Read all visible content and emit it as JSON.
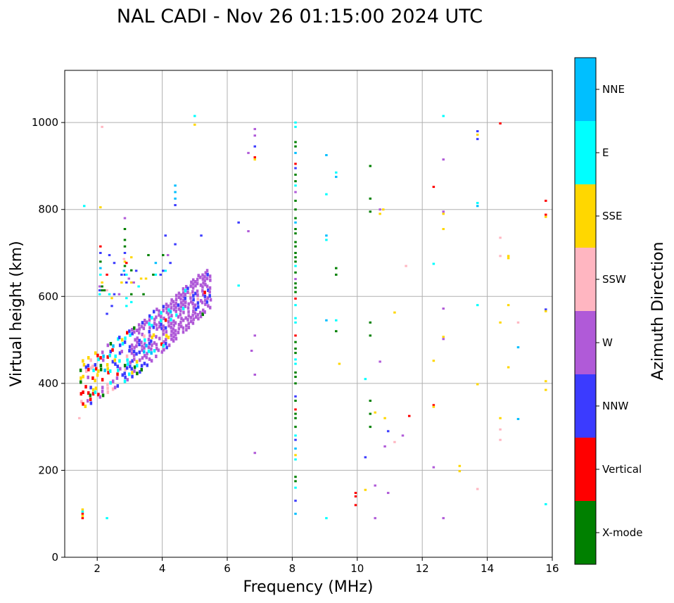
{
  "chart_data": {
    "type": "scatter",
    "title": "NAL CADI - Nov 26 01:15:00 2024 UTC",
    "xlabel": "Frequency (MHz)",
    "ylabel": "Virtual height (km)",
    "xlim": [
      1,
      16
    ],
    "ylim": [
      0,
      1120
    ],
    "xticks": [
      2,
      4,
      6,
      8,
      10,
      12,
      14,
      16
    ],
    "yticks": [
      0,
      200,
      400,
      600,
      800,
      1000
    ],
    "grid": true,
    "colorbar": {
      "label": "Azimuth Direction",
      "categories": [
        {
          "name": "X-mode",
          "color": "#008000"
        },
        {
          "name": "Vertical",
          "color": "#ff0000"
        },
        {
          "name": "NNW",
          "color": "#3b3bff"
        },
        {
          "name": "W",
          "color": "#b05ad8"
        },
        {
          "name": "SSW",
          "color": "#ffb6c1"
        },
        {
          "name": "SSE",
          "color": "#ffd700"
        },
        {
          "name": "E",
          "color": "#00ffff"
        },
        {
          "name": "NNE",
          "color": "#00bfff"
        }
      ]
    },
    "points": [
      {
        "f": 8.1,
        "h": 1000,
        "c": 6
      },
      {
        "f": 8.1,
        "h": 990,
        "c": 6
      },
      {
        "f": 8.1,
        "h": 955,
        "c": 0
      },
      {
        "f": 8.1,
        "h": 945,
        "c": 0
      },
      {
        "f": 8.1,
        "h": 930,
        "c": 7
      },
      {
        "f": 8.1,
        "h": 905,
        "c": 1
      },
      {
        "f": 8.1,
        "h": 895,
        "c": 2
      },
      {
        "f": 8.1,
        "h": 880,
        "c": 0
      },
      {
        "f": 8.1,
        "h": 865,
        "c": 0
      },
      {
        "f": 8.1,
        "h": 855,
        "c": 6
      },
      {
        "f": 8.1,
        "h": 840,
        "c": 3
      },
      {
        "f": 8.1,
        "h": 820,
        "c": 0
      },
      {
        "f": 8.1,
        "h": 800,
        "c": 0
      },
      {
        "f": 8.1,
        "h": 780,
        "c": 0
      },
      {
        "f": 8.1,
        "h": 770,
        "c": 7
      },
      {
        "f": 8.1,
        "h": 755,
        "c": 0
      },
      {
        "f": 8.1,
        "h": 745,
        "c": 0
      },
      {
        "f": 8.1,
        "h": 725,
        "c": 0
      },
      {
        "f": 8.1,
        "h": 715,
        "c": 0
      },
      {
        "f": 8.1,
        "h": 700,
        "c": 0
      },
      {
        "f": 8.1,
        "h": 690,
        "c": 0
      },
      {
        "f": 8.1,
        "h": 680,
        "c": 0
      },
      {
        "f": 8.1,
        "h": 670,
        "c": 6
      },
      {
        "f": 8.1,
        "h": 655,
        "c": 0
      },
      {
        "f": 8.1,
        "h": 640,
        "c": 3
      },
      {
        "f": 8.1,
        "h": 630,
        "c": 0
      },
      {
        "f": 8.1,
        "h": 620,
        "c": 0
      },
      {
        "f": 8.1,
        "h": 610,
        "c": 0
      },
      {
        "f": 8.1,
        "h": 595,
        "c": 1
      },
      {
        "f": 8.1,
        "h": 580,
        "c": 6
      },
      {
        "f": 8.1,
        "h": 550,
        "c": 6
      },
      {
        "f": 8.1,
        "h": 540,
        "c": 6
      },
      {
        "f": 8.1,
        "h": 510,
        "c": 1
      },
      {
        "f": 8.1,
        "h": 495,
        "c": 0
      },
      {
        "f": 8.1,
        "h": 480,
        "c": 0
      },
      {
        "f": 8.1,
        "h": 470,
        "c": 0
      },
      {
        "f": 8.1,
        "h": 455,
        "c": 6
      },
      {
        "f": 8.1,
        "h": 445,
        "c": 6
      },
      {
        "f": 8.1,
        "h": 425,
        "c": 0
      },
      {
        "f": 8.1,
        "h": 415,
        "c": 0
      },
      {
        "f": 8.1,
        "h": 400,
        "c": 0
      },
      {
        "f": 8.1,
        "h": 370,
        "c": 2
      },
      {
        "f": 8.1,
        "h": 360,
        "c": 0
      },
      {
        "f": 8.1,
        "h": 340,
        "c": 1
      },
      {
        "f": 8.1,
        "h": 330,
        "c": 0
      },
      {
        "f": 8.1,
        "h": 320,
        "c": 0
      },
      {
        "f": 8.1,
        "h": 300,
        "c": 0
      },
      {
        "f": 8.1,
        "h": 280,
        "c": 6
      },
      {
        "f": 8.1,
        "h": 270,
        "c": 2
      },
      {
        "f": 8.1,
        "h": 250,
        "c": 7
      },
      {
        "f": 8.1,
        "h": 235,
        "c": 5
      },
      {
        "f": 8.1,
        "h": 225,
        "c": 6
      },
      {
        "f": 8.1,
        "h": 185,
        "c": 0
      },
      {
        "f": 8.1,
        "h": 175,
        "c": 0
      },
      {
        "f": 8.1,
        "h": 160,
        "c": 6
      },
      {
        "f": 8.1,
        "h": 130,
        "c": 2
      },
      {
        "f": 8.1,
        "h": 100,
        "c": 7
      },
      {
        "f": 6.85,
        "h": 985,
        "c": 3
      },
      {
        "f": 6.85,
        "h": 970,
        "c": 3
      },
      {
        "f": 6.85,
        "h": 945,
        "c": 2
      },
      {
        "f": 6.85,
        "h": 920,
        "c": 1
      },
      {
        "f": 6.85,
        "h": 915,
        "c": 5
      },
      {
        "f": 6.85,
        "h": 510,
        "c": 3
      },
      {
        "f": 6.85,
        "h": 420,
        "c": 3
      },
      {
        "f": 6.85,
        "h": 240,
        "c": 3
      },
      {
        "f": 6.65,
        "h": 930,
        "c": 3
      },
      {
        "f": 6.65,
        "h": 750,
        "c": 3
      },
      {
        "f": 6.75,
        "h": 475,
        "c": 3
      },
      {
        "f": 6.35,
        "h": 770,
        "c": 2
      },
      {
        "f": 6.35,
        "h": 625,
        "c": 6
      },
      {
        "f": 5.0,
        "h": 1015,
        "c": 6
      },
      {
        "f": 5.0,
        "h": 995,
        "c": 5
      },
      {
        "f": 4.4,
        "h": 855,
        "c": 7
      },
      {
        "f": 4.4,
        "h": 840,
        "c": 7
      },
      {
        "f": 4.4,
        "h": 825,
        "c": 7
      },
      {
        "f": 4.4,
        "h": 810,
        "c": 2
      },
      {
        "f": 4.1,
        "h": 740,
        "c": 2
      },
      {
        "f": 4.4,
        "h": 720,
        "c": 2
      },
      {
        "f": 5.2,
        "h": 740,
        "c": 2
      },
      {
        "f": 9.05,
        "h": 925,
        "c": 7
      },
      {
        "f": 9.05,
        "h": 835,
        "c": 6
      },
      {
        "f": 9.05,
        "h": 740,
        "c": 7
      },
      {
        "f": 9.05,
        "h": 730,
        "c": 6
      },
      {
        "f": 9.05,
        "h": 545,
        "c": 7
      },
      {
        "f": 9.05,
        "h": 90,
        "c": 6
      },
      {
        "f": 9.35,
        "h": 885,
        "c": 6
      },
      {
        "f": 9.35,
        "h": 875,
        "c": 7
      },
      {
        "f": 9.35,
        "h": 665,
        "c": 0
      },
      {
        "f": 9.35,
        "h": 650,
        "c": 0
      },
      {
        "f": 9.35,
        "h": 545,
        "c": 6
      },
      {
        "f": 9.35,
        "h": 520,
        "c": 0
      },
      {
        "f": 9.45,
        "h": 445,
        "c": 5
      },
      {
        "f": 10.4,
        "h": 900,
        "c": 0
      },
      {
        "f": 10.4,
        "h": 825,
        "c": 0
      },
      {
        "f": 10.4,
        "h": 795,
        "c": 0
      },
      {
        "f": 10.7,
        "h": 800,
        "c": 3
      },
      {
        "f": 10.8,
        "h": 800,
        "c": 5
      },
      {
        "f": 10.7,
        "h": 790,
        "c": 5
      },
      {
        "f": 10.4,
        "h": 540,
        "c": 0
      },
      {
        "f": 10.4,
        "h": 510,
        "c": 0
      },
      {
        "f": 10.7,
        "h": 450,
        "c": 3
      },
      {
        "f": 10.25,
        "h": 410,
        "c": 6
      },
      {
        "f": 10.4,
        "h": 360,
        "c": 0
      },
      {
        "f": 10.4,
        "h": 330,
        "c": 0
      },
      {
        "f": 10.55,
        "h": 333,
        "c": 5
      },
      {
        "f": 10.85,
        "h": 320,
        "c": 5
      },
      {
        "f": 10.4,
        "h": 300,
        "c": 0
      },
      {
        "f": 10.95,
        "h": 290,
        "c": 2
      },
      {
        "f": 11.6,
        "h": 325,
        "c": 1
      },
      {
        "f": 11.4,
        "h": 280,
        "c": 3
      },
      {
        "f": 11.15,
        "h": 265,
        "c": 4
      },
      {
        "f": 10.85,
        "h": 255,
        "c": 3
      },
      {
        "f": 10.25,
        "h": 230,
        "c": 2
      },
      {
        "f": 10.55,
        "h": 165,
        "c": 3
      },
      {
        "f": 10.25,
        "h": 155,
        "c": 5
      },
      {
        "f": 9.95,
        "h": 148,
        "c": 1
      },
      {
        "f": 9.95,
        "h": 140,
        "c": 1
      },
      {
        "f": 9.95,
        "h": 120,
        "c": 1
      },
      {
        "f": 10.95,
        "h": 148,
        "c": 3
      },
      {
        "f": 10.55,
        "h": 90,
        "c": 3
      },
      {
        "f": 11.15,
        "h": 563,
        "c": 5
      },
      {
        "f": 11.5,
        "h": 670,
        "c": 4
      },
      {
        "f": 12.65,
        "h": 1015,
        "c": 6
      },
      {
        "f": 12.65,
        "h": 915,
        "c": 3
      },
      {
        "f": 12.35,
        "h": 852,
        "c": 1
      },
      {
        "f": 12.65,
        "h": 795,
        "c": 3
      },
      {
        "f": 12.65,
        "h": 790,
        "c": 5
      },
      {
        "f": 12.65,
        "h": 755,
        "c": 5
      },
      {
        "f": 12.35,
        "h": 675,
        "c": 6
      },
      {
        "f": 12.65,
        "h": 572,
        "c": 3
      },
      {
        "f": 12.65,
        "h": 507,
        "c": 5
      },
      {
        "f": 12.65,
        "h": 502,
        "c": 3
      },
      {
        "f": 12.35,
        "h": 452,
        "c": 5
      },
      {
        "f": 12.35,
        "h": 350,
        "c": 1
      },
      {
        "f": 12.35,
        "h": 346,
        "c": 5
      },
      {
        "f": 12.35,
        "h": 207,
        "c": 3
      },
      {
        "f": 12.65,
        "h": 90,
        "c": 3
      },
      {
        "f": 13.15,
        "h": 210,
        "c": 5
      },
      {
        "f": 13.15,
        "h": 198,
        "c": 5
      },
      {
        "f": 13.7,
        "h": 980,
        "c": 2
      },
      {
        "f": 13.7,
        "h": 972,
        "c": 5
      },
      {
        "f": 13.7,
        "h": 962,
        "c": 2
      },
      {
        "f": 13.7,
        "h": 815,
        "c": 6
      },
      {
        "f": 13.7,
        "h": 808,
        "c": 7
      },
      {
        "f": 13.7,
        "h": 580,
        "c": 6
      },
      {
        "f": 13.7,
        "h": 398,
        "c": 5
      },
      {
        "f": 13.7,
        "h": 157,
        "c": 4
      },
      {
        "f": 14.4,
        "h": 998,
        "c": 1
      },
      {
        "f": 14.4,
        "h": 735,
        "c": 4
      },
      {
        "f": 14.4,
        "h": 693,
        "c": 4
      },
      {
        "f": 14.65,
        "h": 693,
        "c": 5
      },
      {
        "f": 14.65,
        "h": 688,
        "c": 5
      },
      {
        "f": 14.65,
        "h": 580,
        "c": 5
      },
      {
        "f": 14.4,
        "h": 540,
        "c": 5
      },
      {
        "f": 14.95,
        "h": 540,
        "c": 4
      },
      {
        "f": 14.95,
        "h": 483,
        "c": 7
      },
      {
        "f": 14.65,
        "h": 437,
        "c": 5
      },
      {
        "f": 14.4,
        "h": 320,
        "c": 5
      },
      {
        "f": 14.95,
        "h": 318,
        "c": 7
      },
      {
        "f": 14.4,
        "h": 294,
        "c": 4
      },
      {
        "f": 14.4,
        "h": 270,
        "c": 4
      },
      {
        "f": 15.8,
        "h": 820,
        "c": 1
      },
      {
        "f": 15.8,
        "h": 788,
        "c": 1
      },
      {
        "f": 15.8,
        "h": 783,
        "c": 5
      },
      {
        "f": 15.8,
        "h": 570,
        "c": 2
      },
      {
        "f": 15.8,
        "h": 566,
        "c": 5
      },
      {
        "f": 15.8,
        "h": 405,
        "c": 5
      },
      {
        "f": 15.8,
        "h": 385,
        "c": 5
      },
      {
        "f": 15.8,
        "h": 122,
        "c": 6
      },
      {
        "f": 1.6,
        "h": 808,
        "c": 6
      },
      {
        "f": 2.1,
        "h": 805,
        "c": 5
      },
      {
        "f": 2.15,
        "h": 990,
        "c": 4
      },
      {
        "f": 2.3,
        "h": 90,
        "c": 6
      },
      {
        "f": 1.45,
        "h": 320,
        "c": 4
      },
      {
        "f": 1.55,
        "h": 110,
        "c": 5
      },
      {
        "f": 1.55,
        "h": 105,
        "c": 6
      },
      {
        "f": 1.55,
        "h": 100,
        "c": 1
      },
      {
        "f": 1.55,
        "h": 95,
        "c": 5
      },
      {
        "f": 1.55,
        "h": 90,
        "c": 1
      },
      {
        "f": 2.85,
        "h": 780,
        "c": 3
      },
      {
        "f": 2.85,
        "h": 755,
        "c": 0
      },
      {
        "f": 2.85,
        "h": 730,
        "c": 0
      },
      {
        "f": 2.85,
        "h": 715,
        "c": 0
      },
      {
        "f": 2.85,
        "h": 700,
        "c": 2
      },
      {
        "f": 2.85,
        "h": 680,
        "c": 5
      },
      {
        "f": 2.85,
        "h": 670,
        "c": 0
      },
      {
        "f": 2.85,
        "h": 650,
        "c": 2
      },
      {
        "f": 3.05,
        "h": 690,
        "c": 5
      },
      {
        "f": 3.05,
        "h": 660,
        "c": 0
      },
      {
        "f": 2.1,
        "h": 715,
        "c": 1
      },
      {
        "f": 2.1,
        "h": 700,
        "c": 2
      },
      {
        "f": 2.1,
        "h": 680,
        "c": 0
      },
      {
        "f": 2.1,
        "h": 665,
        "c": 7
      },
      {
        "f": 2.1,
        "h": 650,
        "c": 6
      }
    ]
  }
}
